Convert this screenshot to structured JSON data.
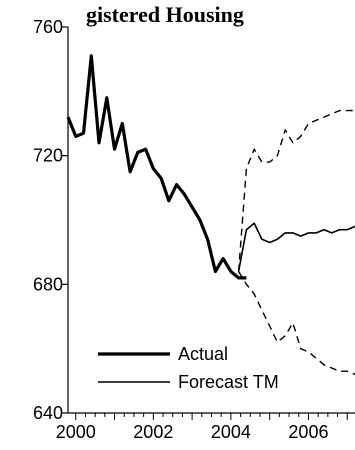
{
  "chart_data": {
    "type": "line",
    "title": "gistered Housing",
    "xlabel": "",
    "ylabel": "",
    "xlim": [
      1999.8,
      2007.2
    ],
    "ylim": [
      640,
      760
    ],
    "grid": false,
    "legend_position": "bottom-left",
    "x_ticks": [
      {
        "value": 2000,
        "label": "2000"
      },
      {
        "value": 2002,
        "label": "2002"
      },
      {
        "value": 2004,
        "label": "2004"
      },
      {
        "value": 2006,
        "label": "2006"
      }
    ],
    "y_ticks": [
      {
        "value": 640,
        "label": "640"
      },
      {
        "value": 680,
        "label": "680"
      },
      {
        "value": 720,
        "label": "720"
      },
      {
        "value": 760,
        "label": "760"
      }
    ],
    "series": [
      {
        "name": "Actual",
        "style": "solid-thick",
        "x": [
          1999.8,
          2000.0,
          2000.2,
          2000.4,
          2000.6,
          2000.8,
          2001.0,
          2001.2,
          2001.4,
          2001.6,
          2001.8,
          2002.0,
          2002.2,
          2002.4,
          2002.6,
          2002.8,
          2003.0,
          2003.2,
          2003.4,
          2003.6,
          2003.8,
          2004.0,
          2004.2,
          2004.4
        ],
        "values": [
          732,
          726,
          727,
          751,
          724,
          738,
          722,
          730,
          715,
          721,
          722,
          716,
          713,
          706,
          711,
          708,
          704,
          700,
          694,
          684,
          688,
          684,
          682,
          682
        ]
      },
      {
        "name": "Forecast TM",
        "style": "solid-thin",
        "x": [
          2004.2,
          2004.4,
          2004.6,
          2004.8,
          2005.0,
          2005.2,
          2005.4,
          2005.6,
          2005.8,
          2006.0,
          2006.2,
          2006.4,
          2006.6,
          2006.8,
          2007.0,
          2007.2
        ],
        "values": [
          684,
          697,
          699,
          694,
          693,
          694,
          696,
          696,
          695,
          696,
          696,
          697,
          696,
          697,
          697,
          698
        ]
      },
      {
        "name": "",
        "style": "dashed",
        "x": [
          2004.2,
          2004.4,
          2004.6,
          2004.8,
          2005.0,
          2005.2,
          2005.4,
          2005.6,
          2005.8,
          2006.0,
          2006.2,
          2006.4,
          2006.6,
          2006.8,
          2007.0,
          2007.2
        ],
        "values": [
          684,
          716,
          722,
          718,
          718,
          720,
          728,
          724,
          726,
          730,
          731,
          732,
          733,
          734,
          734,
          734
        ]
      },
      {
        "name": "",
        "style": "dashed",
        "x": [
          2004.2,
          2004.4,
          2004.6,
          2004.8,
          2005.0,
          2005.2,
          2005.4,
          2005.6,
          2005.8,
          2006.0,
          2006.2,
          2006.4,
          2006.6,
          2006.8,
          2007.0,
          2007.2
        ],
        "values": [
          684,
          680,
          677,
          672,
          667,
          662,
          664,
          668,
          660,
          659,
          657,
          655,
          654,
          653,
          653,
          652
        ]
      }
    ],
    "legend": [
      {
        "label": "Actual",
        "style": "solid-thick"
      },
      {
        "label": "Forecast TM",
        "style": "solid-thin"
      }
    ]
  }
}
